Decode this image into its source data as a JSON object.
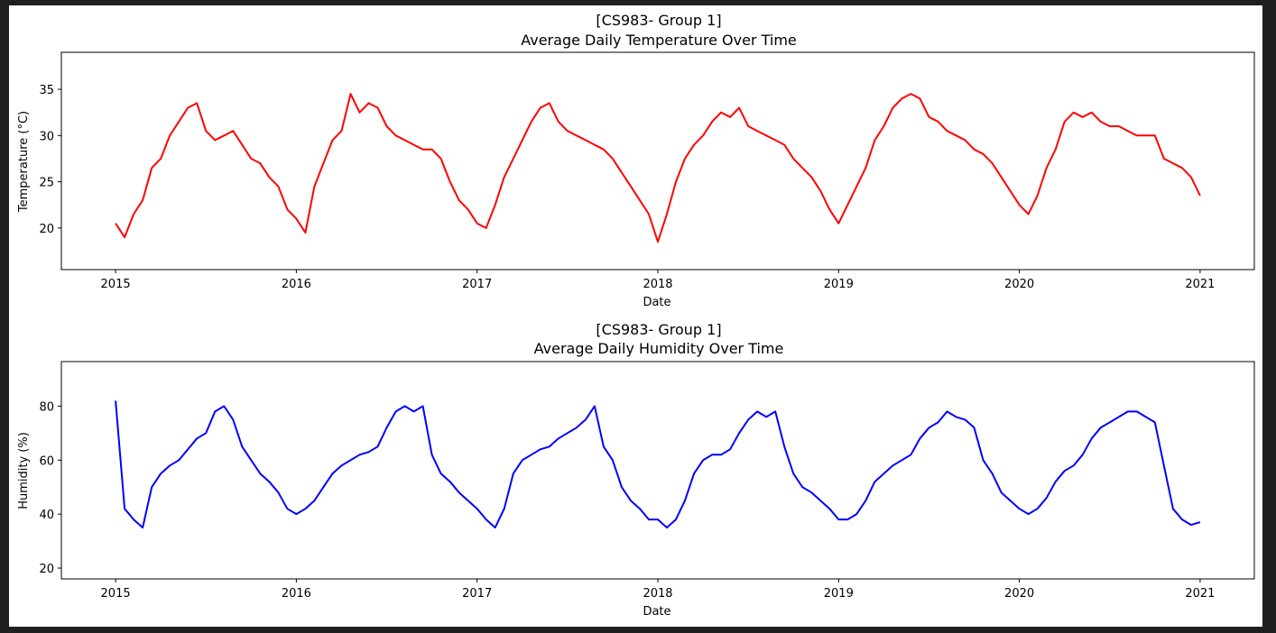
{
  "chart_data": [
    {
      "type": "line",
      "title_line1": "[CS983- Group 1]",
      "title_line2": "Average Daily Temperature Over Time",
      "xlabel": "Date",
      "ylabel": "Temperature (°C)",
      "x_ticks": [
        "2015",
        "2016",
        "2017",
        "2018",
        "2019",
        "2020",
        "2021"
      ],
      "y_ticks": [
        "20",
        "25",
        "30",
        "35"
      ],
      "xlim": [
        2014.7,
        2021.3
      ],
      "ylim": [
        15.5,
        39.0
      ],
      "grid": false,
      "color": "#ff0000",
      "series": [
        {
          "x": [
            2015.0,
            2015.05,
            2015.1,
            2015.15,
            2015.2,
            2015.25,
            2015.3,
            2015.35,
            2015.4,
            2015.45,
            2015.5,
            2015.55,
            2015.6,
            2015.65,
            2015.7,
            2015.75,
            2015.8,
            2015.85,
            2015.9,
            2015.95,
            2016.0,
            2016.05,
            2016.1,
            2016.15,
            2016.2,
            2016.25,
            2016.3,
            2016.35,
            2016.4,
            2016.45,
            2016.5,
            2016.55,
            2016.6,
            2016.65,
            2016.7,
            2016.75,
            2016.8,
            2016.85,
            2016.9,
            2016.95,
            2017.0,
            2017.05,
            2017.1,
            2017.15,
            2017.2,
            2017.25,
            2017.3,
            2017.35,
            2017.4,
            2017.45,
            2017.5,
            2017.55,
            2017.6,
            2017.65,
            2017.7,
            2017.75,
            2017.8,
            2017.85,
            2017.9,
            2017.95,
            2018.0,
            2018.05,
            2018.1,
            2018.15,
            2018.2,
            2018.25,
            2018.3,
            2018.35,
            2018.4,
            2018.45,
            2018.5,
            2018.55,
            2018.6,
            2018.65,
            2018.7,
            2018.75,
            2018.8,
            2018.85,
            2018.9,
            2018.95,
            2019.0,
            2019.05,
            2019.1,
            2019.15,
            2019.2,
            2019.25,
            2019.3,
            2019.35,
            2019.4,
            2019.45,
            2019.5,
            2019.55,
            2019.6,
            2019.65,
            2019.7,
            2019.75,
            2019.8,
            2019.85,
            2019.9,
            2019.95,
            2020.0,
            2020.05,
            2020.1,
            2020.15,
            2020.2,
            2020.25,
            2020.3,
            2020.35,
            2020.4,
            2020.45,
            2020.5,
            2020.55,
            2020.6,
            2020.65,
            2020.7,
            2020.75,
            2020.8,
            2020.85,
            2020.9,
            2020.95,
            2021.0
          ],
          "y": [
            20.5,
            19.0,
            21.5,
            23.0,
            26.5,
            27.5,
            30.0,
            31.5,
            33.0,
            33.5,
            30.5,
            29.5,
            30.0,
            30.5,
            29.0,
            27.5,
            27.0,
            25.5,
            24.5,
            22.0,
            21.0,
            19.5,
            24.5,
            27.0,
            29.5,
            30.5,
            34.5,
            32.5,
            33.5,
            33.0,
            31.0,
            30.0,
            29.5,
            29.0,
            28.5,
            28.5,
            27.5,
            25.0,
            23.0,
            22.0,
            20.5,
            20.0,
            22.5,
            25.5,
            27.5,
            29.5,
            31.5,
            33.0,
            33.5,
            31.5,
            30.5,
            30.0,
            29.5,
            29.0,
            28.5,
            27.5,
            26.0,
            24.5,
            23.0,
            21.5,
            18.5,
            21.5,
            25.0,
            27.5,
            29.0,
            30.0,
            31.5,
            32.5,
            32.0,
            33.0,
            31.0,
            30.5,
            30.0,
            29.5,
            29.0,
            27.5,
            26.5,
            25.5,
            24.0,
            22.0,
            20.5,
            22.5,
            24.5,
            26.5,
            29.5,
            31.0,
            33.0,
            34.0,
            34.5,
            34.0,
            32.0,
            31.5,
            30.5,
            30.0,
            29.5,
            28.5,
            28.0,
            27.0,
            25.5,
            24.0,
            22.5,
            21.5,
            23.5,
            26.5,
            28.5,
            31.5,
            32.5,
            32.0,
            32.5,
            31.5,
            31.0,
            31.0,
            30.5,
            30.0,
            30.0,
            30.0,
            27.5,
            27.0,
            26.5,
            25.5,
            23.5
          ]
        }
      ]
    },
    {
      "type": "line",
      "title_line1": "[CS983- Group 1]",
      "title_line2": "Average Daily Humidity Over Time",
      "xlabel": "Date",
      "ylabel": "Humidity (%)",
      "x_ticks": [
        "2015",
        "2016",
        "2017",
        "2018",
        "2019",
        "2020",
        "2021"
      ],
      "y_ticks": [
        "20",
        "40",
        "60",
        "80"
      ],
      "xlim": [
        2014.7,
        2021.3
      ],
      "ylim": [
        16.0,
        96.5
      ],
      "grid": false,
      "color": "#0000ff",
      "series": [
        {
          "x": [
            2015.0,
            2015.05,
            2015.1,
            2015.15,
            2015.2,
            2015.25,
            2015.3,
            2015.35,
            2015.4,
            2015.45,
            2015.5,
            2015.55,
            2015.6,
            2015.65,
            2015.7,
            2015.75,
            2015.8,
            2015.85,
            2015.9,
            2015.95,
            2016.0,
            2016.05,
            2016.1,
            2016.15,
            2016.2,
            2016.25,
            2016.3,
            2016.35,
            2016.4,
            2016.45,
            2016.5,
            2016.55,
            2016.6,
            2016.65,
            2016.7,
            2016.75,
            2016.8,
            2016.85,
            2016.9,
            2016.95,
            2017.0,
            2017.05,
            2017.1,
            2017.15,
            2017.2,
            2017.25,
            2017.3,
            2017.35,
            2017.4,
            2017.45,
            2017.5,
            2017.55,
            2017.6,
            2017.65,
            2017.7,
            2017.75,
            2017.8,
            2017.85,
            2017.9,
            2017.95,
            2018.0,
            2018.05,
            2018.1,
            2018.15,
            2018.2,
            2018.25,
            2018.3,
            2018.35,
            2018.4,
            2018.45,
            2018.5,
            2018.55,
            2018.6,
            2018.65,
            2018.7,
            2018.75,
            2018.8,
            2018.85,
            2018.9,
            2018.95,
            2019.0,
            2019.05,
            2019.1,
            2019.15,
            2019.2,
            2019.25,
            2019.3,
            2019.35,
            2019.4,
            2019.45,
            2019.5,
            2019.55,
            2019.6,
            2019.65,
            2019.7,
            2019.75,
            2019.8,
            2019.85,
            2019.9,
            2019.95,
            2020.0,
            2020.05,
            2020.1,
            2020.15,
            2020.2,
            2020.25,
            2020.3,
            2020.35,
            2020.4,
            2020.45,
            2020.5,
            2020.55,
            2020.6,
            2020.65,
            2020.7,
            2020.75,
            2020.8,
            2020.85,
            2020.9,
            2020.95,
            2021.0
          ],
          "y": [
            82,
            42,
            38,
            35,
            50,
            55,
            58,
            60,
            64,
            68,
            70,
            78,
            80,
            75,
            65,
            60,
            55,
            52,
            48,
            42,
            40,
            42,
            45,
            50,
            55,
            58,
            60,
            62,
            63,
            65,
            72,
            78,
            80,
            78,
            80,
            62,
            55,
            52,
            48,
            45,
            42,
            38,
            35,
            42,
            55,
            60,
            62,
            64,
            65,
            68,
            70,
            72,
            75,
            80,
            65,
            60,
            50,
            45,
            42,
            38,
            38,
            35,
            38,
            45,
            55,
            60,
            62,
            62,
            64,
            70,
            75,
            78,
            76,
            78,
            65,
            55,
            50,
            48,
            45,
            42,
            38,
            38,
            40,
            45,
            52,
            55,
            58,
            60,
            62,
            68,
            72,
            74,
            78,
            76,
            75,
            72,
            60,
            55,
            48,
            45,
            42,
            40,
            42,
            46,
            52,
            56,
            58,
            62,
            68,
            72,
            74,
            76,
            78,
            78,
            76,
            74,
            58,
            42,
            38,
            36,
            37
          ]
        }
      ]
    }
  ]
}
